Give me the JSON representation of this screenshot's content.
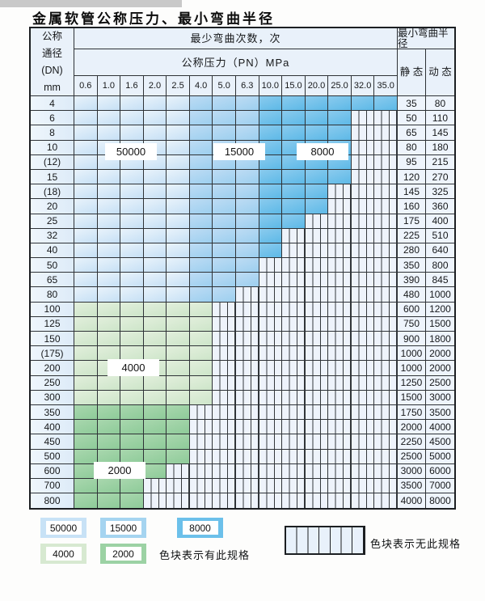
{
  "title": "金属软管公称压力、最小弯曲半径",
  "table": {
    "header": {
      "dn_lines": [
        "公称",
        "通径",
        "(DN)",
        "mm"
      ],
      "bend_cycles_label": "最少弯曲次数，次",
      "pressure_label": "公称压力（PN）MPa",
      "pressure_columns": [
        "0.6",
        "1.0",
        "1.6",
        "2.0",
        "2.5",
        "4.0",
        "5.0",
        "6.3",
        "10.0",
        "15.0",
        "20.0",
        "25.0",
        "32.0",
        "35.0"
      ],
      "radius_label": "最小弯曲半径",
      "static_label": "静 态",
      "dynamic_label": "动 态"
    },
    "overlays": [
      {
        "text": "50000"
      },
      {
        "text": "15000"
      },
      {
        "text": "8000"
      },
      {
        "text": "4000"
      },
      {
        "text": "2000"
      }
    ],
    "rows": [
      {
        "dn": "4",
        "region": "blue",
        "colored": 14,
        "static": "35",
        "dynamic": "80"
      },
      {
        "dn": "6",
        "region": "blue",
        "colored": 12,
        "static": "50",
        "dynamic": "110"
      },
      {
        "dn": "8",
        "region": "blue",
        "colored": 12,
        "static": "65",
        "dynamic": "145"
      },
      {
        "dn": "10",
        "region": "blue",
        "colored": 12,
        "static": "80",
        "dynamic": "180"
      },
      {
        "dn": "(12)",
        "region": "blue",
        "colored": 12,
        "static": "95",
        "dynamic": "215"
      },
      {
        "dn": "15",
        "region": "blue",
        "colored": 12,
        "static": "120",
        "dynamic": "270"
      },
      {
        "dn": "(18)",
        "region": "blue",
        "colored": 11,
        "static": "145",
        "dynamic": "325"
      },
      {
        "dn": "20",
        "region": "blue",
        "colored": 11,
        "static": "160",
        "dynamic": "360"
      },
      {
        "dn": "25",
        "region": "blue",
        "colored": 10,
        "static": "175",
        "dynamic": "400"
      },
      {
        "dn": "32",
        "region": "blue",
        "colored": 9,
        "static": "225",
        "dynamic": "510"
      },
      {
        "dn": "40",
        "region": "blue",
        "colored": 9,
        "static": "280",
        "dynamic": "640"
      },
      {
        "dn": "50",
        "region": "blue",
        "colored": 8,
        "static": "350",
        "dynamic": "800"
      },
      {
        "dn": "65",
        "region": "blue",
        "colored": 8,
        "static": "390",
        "dynamic": "845"
      },
      {
        "dn": "80",
        "region": "blue",
        "colored": 7,
        "static": "480",
        "dynamic": "1000"
      },
      {
        "dn": "100",
        "region": "g4",
        "colored": 6,
        "static": "600",
        "dynamic": "1200"
      },
      {
        "dn": "125",
        "region": "g4",
        "colored": 6,
        "static": "750",
        "dynamic": "1500"
      },
      {
        "dn": "150",
        "region": "g4",
        "colored": 6,
        "static": "900",
        "dynamic": "1800"
      },
      {
        "dn": "(175)",
        "region": "g4",
        "colored": 6,
        "static": "1000",
        "dynamic": "2000"
      },
      {
        "dn": "200",
        "region": "g4",
        "colored": 6,
        "static": "1000",
        "dynamic": "2000"
      },
      {
        "dn": "250",
        "region": "g4",
        "colored": 6,
        "static": "1250",
        "dynamic": "2500"
      },
      {
        "dn": "300",
        "region": "g4",
        "colored": 6,
        "static": "1500",
        "dynamic": "3000"
      },
      {
        "dn": "350",
        "region": "g2",
        "colored": 5,
        "static": "1750",
        "dynamic": "3500"
      },
      {
        "dn": "400",
        "region": "g2",
        "colored": 5,
        "static": "2000",
        "dynamic": "4000"
      },
      {
        "dn": "450",
        "region": "g2",
        "colored": 5,
        "static": "2250",
        "dynamic": "4500"
      },
      {
        "dn": "500",
        "region": "g2",
        "colored": 5,
        "static": "2500",
        "dynamic": "5000"
      },
      {
        "dn": "600",
        "region": "g2",
        "colored": 4,
        "static": "3000",
        "dynamic": "6000"
      },
      {
        "dn": "700",
        "region": "g2",
        "colored": 3,
        "static": "3500",
        "dynamic": "7000"
      },
      {
        "dn": "800",
        "region": "g2",
        "colored": 3,
        "static": "4000",
        "dynamic": "8000"
      }
    ]
  },
  "legend": {
    "swatches": [
      {
        "label": "50000",
        "color": "#c8e2f6"
      },
      {
        "label": "15000",
        "color": "#a5d4f0"
      },
      {
        "label": "8000",
        "color": "#6cc0ea"
      },
      {
        "label": "4000",
        "color": "#d7e9d1"
      },
      {
        "label": "2000",
        "color": "#9cd2a4"
      }
    ],
    "has_spec_text": "色块表示有此规格",
    "no_spec_text": "色块表示无此规格"
  },
  "colors": {
    "cycles_50000": "#c8e2f6",
    "cycles_15000": "#a5d4f0",
    "cycles_8000": "#6cc0ea",
    "cycles_4000": "#d7e9d1",
    "cycles_2000": "#9cd2a4",
    "no_spec_bg": "#eef3fb",
    "grid_line": "#2e3236"
  }
}
